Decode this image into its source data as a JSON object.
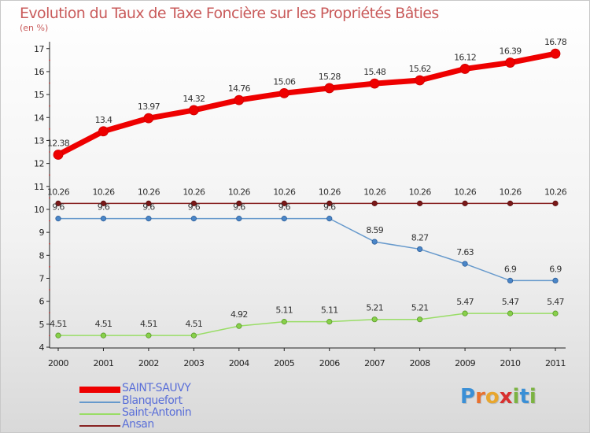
{
  "chart_data": {
    "type": "line",
    "title": "Evolution du Taux de Taxe Foncière sur les Propriétés Bâties",
    "ylabel": "(en %)",
    "xlabel": "",
    "x": [
      "2000",
      "2001",
      "2002",
      "2003",
      "2004",
      "2005",
      "2006",
      "2007",
      "2008",
      "2009",
      "2010",
      "2011"
    ],
    "yticks": [
      4,
      5,
      6,
      7,
      8,
      9,
      10,
      11,
      12,
      13,
      14,
      15,
      16,
      17
    ],
    "ylim": [
      4,
      17.3
    ],
    "grid": false,
    "legend_position": "bottom-left",
    "series": [
      {
        "name": "SAINT-SAUVY",
        "color": "#ee0000",
        "values": [
          12.38,
          13.4,
          13.97,
          14.32,
          14.76,
          15.06,
          15.28,
          15.48,
          15.62,
          16.12,
          16.39,
          16.78
        ],
        "labels": [
          "12.38",
          "13.4",
          "13.97",
          "14.32",
          "14.76",
          "15.06",
          "15.28",
          "15.48",
          "15.62",
          "16.12",
          "16.39",
          "16.78"
        ]
      },
      {
        "name": "Blanquefort",
        "color": "#6699cc",
        "values": [
          9.6,
          9.6,
          9.6,
          9.6,
          9.6,
          9.6,
          9.6,
          8.59,
          8.27,
          7.63,
          6.9,
          6.9
        ],
        "labels": [
          "9.6",
          "9.6",
          "9.6",
          "9.6",
          "9.6",
          "9.6",
          "9.6",
          "8.59",
          "8.27",
          "7.63",
          "6.9",
          "6.9"
        ]
      },
      {
        "name": "Saint-Antonin",
        "color": "#99dd66",
        "values": [
          4.51,
          4.51,
          4.51,
          4.51,
          4.92,
          5.11,
          5.11,
          5.21,
          5.21,
          5.47,
          5.47,
          5.47
        ],
        "labels": [
          "4.51",
          "4.51",
          "4.51",
          "4.51",
          "4.92",
          "5.11",
          "5.11",
          "5.21",
          "5.21",
          "5.47",
          "5.47",
          "5.47"
        ]
      },
      {
        "name": "Ansan",
        "color": "#882222",
        "values": [
          10.26,
          10.26,
          10.26,
          10.26,
          10.26,
          10.26,
          10.26,
          10.26,
          10.26,
          10.26,
          10.26,
          10.26
        ],
        "labels": [
          "10.26",
          "10.26",
          "10.26",
          "10.26",
          "10.26",
          "10.26",
          "10.26",
          "10.26",
          "10.26",
          "10.26",
          "10.26",
          "10.26"
        ]
      }
    ]
  },
  "brand": {
    "letters": [
      "P",
      "r",
      "o",
      "x",
      "i",
      "t",
      "i"
    ],
    "colors": [
      "#3a8fd6",
      "#e8712e",
      "#e8a62e",
      "#d8302f",
      "#7cb342",
      "#3a8fd6",
      "#7cb342"
    ]
  }
}
